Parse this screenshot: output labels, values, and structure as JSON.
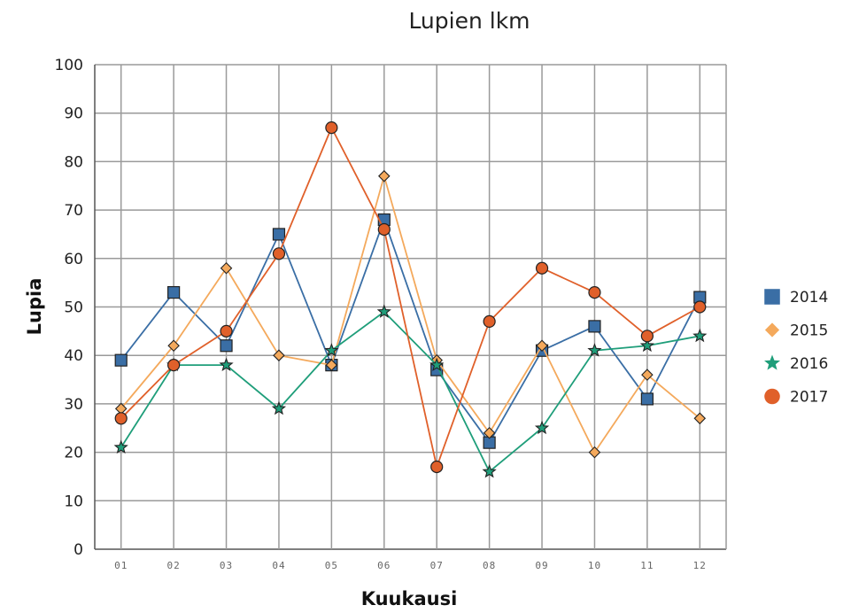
{
  "chart_data": {
    "type": "line",
    "title": "Lupien lkm",
    "xlabel": "Kuukausi",
    "ylabel": "Lupia",
    "ylim": [
      0,
      100
    ],
    "yticks": [
      0,
      10,
      20,
      30,
      40,
      50,
      60,
      70,
      80,
      90,
      100
    ],
    "categories": [
      "01",
      "02",
      "03",
      "04",
      "05",
      "06",
      "07",
      "08",
      "09",
      "10",
      "11",
      "12"
    ],
    "grid": true,
    "legend_position": "right",
    "series": [
      {
        "name": "2014",
        "color": "#3a6ea5",
        "marker": "square",
        "values": [
          39,
          53,
          42,
          65,
          38,
          68,
          37,
          22,
          41,
          46,
          31,
          52
        ]
      },
      {
        "name": "2015",
        "color": "#f4a95c",
        "marker": "diamond",
        "values": [
          29,
          42,
          58,
          40,
          38,
          77,
          39,
          24,
          42,
          20,
          36,
          27
        ]
      },
      {
        "name": "2016",
        "color": "#1f9e7a",
        "marker": "star",
        "values": [
          21,
          38,
          38,
          29,
          41,
          49,
          38,
          16,
          25,
          41,
          42,
          44
        ]
      },
      {
        "name": "2017",
        "color": "#e0602a",
        "marker": "circle",
        "values": [
          27,
          38,
          45,
          61,
          87,
          66,
          17,
          47,
          58,
          53,
          44,
          50
        ]
      }
    ]
  }
}
